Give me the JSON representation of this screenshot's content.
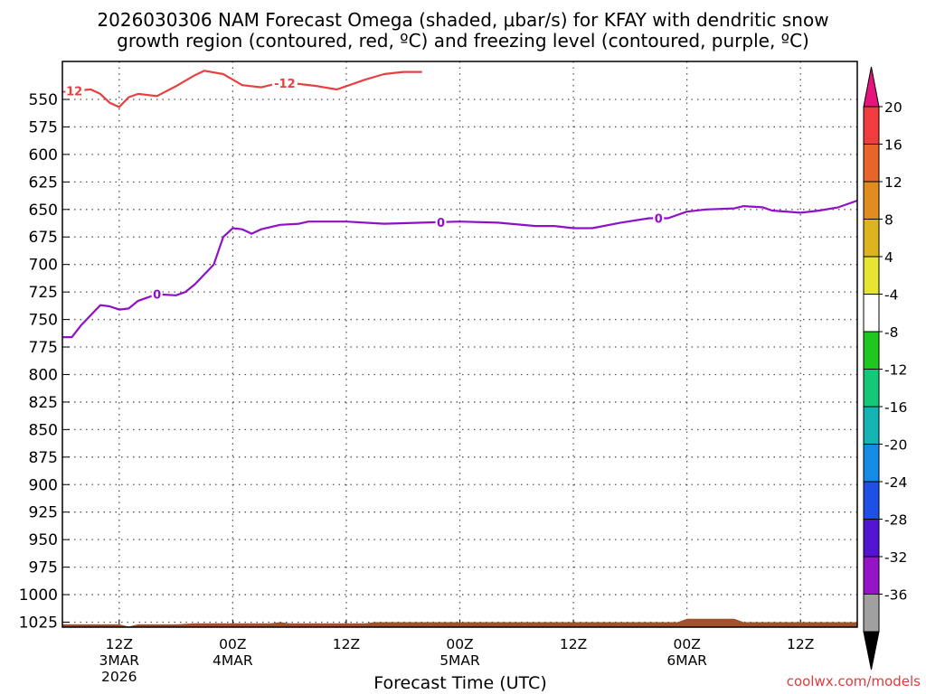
{
  "chart_data": {
    "type": "line",
    "title_line1": "2026030306 NAM Forecast Omega (shaded, μbar/s) for KFAY with dendritic snow",
    "title_line2": "growth region (contoured, red, ºC) and freezing level (contoured, purple, ºC)",
    "xlabel": "Forecast Time (UTC)",
    "credit": "coolwx.com/models",
    "x_range_hours": [
      0,
      84
    ],
    "y_range_hpa": [
      530,
      1040
    ],
    "y_ticks": [
      "550",
      "575",
      "600",
      "625",
      "650",
      "675",
      "700",
      "725",
      "750",
      "775",
      "800",
      "825",
      "850",
      "875",
      "900",
      "925",
      "950",
      "975",
      "1000",
      "1025"
    ],
    "x_ticks": [
      {
        "hour": 6,
        "line1": "12Z",
        "line2": "3MAR",
        "line3": "2026"
      },
      {
        "hour": 18,
        "line1": "00Z",
        "line2": "4MAR",
        "line3": ""
      },
      {
        "hour": 30,
        "line1": "12Z",
        "line2": "",
        "line3": ""
      },
      {
        "hour": 42,
        "line1": "00Z",
        "line2": "5MAR",
        "line3": ""
      },
      {
        "hour": 54,
        "line1": "12Z",
        "line2": "",
        "line3": ""
      },
      {
        "hour": 66,
        "line1": "00Z",
        "line2": "6MAR",
        "line3": ""
      },
      {
        "hour": 78,
        "line1": "12Z",
        "line2": "",
        "line3": ""
      }
    ],
    "series": [
      {
        "name": "-12 °C isotherm (dendritic growth region)",
        "label": "-12",
        "color": "#e84040",
        "label_hours": [
          1.0,
          23.5
        ],
        "points": [
          [
            0,
            543
          ],
          [
            3,
            541
          ],
          [
            4,
            545
          ],
          [
            5,
            553
          ],
          [
            6,
            557
          ],
          [
            7,
            548
          ],
          [
            8,
            545
          ],
          [
            10,
            547
          ],
          [
            12,
            538
          ],
          [
            14,
            528
          ],
          [
            15,
            524
          ],
          [
            17,
            527
          ],
          [
            19,
            537
          ],
          [
            21,
            539
          ],
          [
            23,
            535
          ],
          [
            25,
            536
          ],
          [
            27,
            538
          ],
          [
            29,
            541
          ],
          [
            30,
            538
          ],
          [
            32,
            532
          ],
          [
            34,
            527
          ],
          [
            36,
            525
          ],
          [
            38,
            525
          ]
        ]
      },
      {
        "name": "0 °C isotherm (freezing level)",
        "label": "0",
        "color": "#9010c8",
        "label_hours": [
          10,
          40,
          63
        ],
        "points": [
          [
            0,
            766
          ],
          [
            1,
            766
          ],
          [
            2,
            755
          ],
          [
            3,
            746
          ],
          [
            4,
            737
          ],
          [
            5,
            738
          ],
          [
            6,
            741
          ],
          [
            7,
            740
          ],
          [
            8,
            733
          ],
          [
            10,
            727
          ],
          [
            12,
            728
          ],
          [
            13,
            725
          ],
          [
            14,
            718
          ],
          [
            16,
            700
          ],
          [
            17,
            675
          ],
          [
            18,
            667
          ],
          [
            19,
            668
          ],
          [
            20,
            672
          ],
          [
            21,
            668
          ],
          [
            23,
            664
          ],
          [
            25,
            663
          ],
          [
            26,
            661
          ],
          [
            30,
            661
          ],
          [
            34,
            663
          ],
          [
            38,
            662
          ],
          [
            42,
            661
          ],
          [
            46,
            662
          ],
          [
            50,
            665
          ],
          [
            52,
            665
          ],
          [
            54,
            667
          ],
          [
            56,
            667
          ],
          [
            59,
            662
          ],
          [
            62,
            658
          ],
          [
            64,
            658
          ],
          [
            66,
            652
          ],
          [
            68,
            650
          ],
          [
            71,
            649
          ],
          [
            72,
            647
          ],
          [
            74,
            648
          ],
          [
            75,
            651
          ],
          [
            78,
            653
          ],
          [
            80,
            651
          ],
          [
            82,
            648
          ],
          [
            84,
            642
          ]
        ]
      }
    ],
    "terrain_color": "#a0522d",
    "colorbar": {
      "units": "μbar/s",
      "labels": [
        "20",
        "16",
        "12",
        "8",
        "4",
        "-4",
        "-8",
        "-12",
        "-16",
        "-20",
        "-24",
        "-28",
        "-32",
        "-36"
      ],
      "colors": [
        "#f03c3c",
        "#e86428",
        "#e08c1e",
        "#dcb41e",
        "#e6e632",
        "#ffffff",
        "#1ec81e",
        "#14c878",
        "#14b4b4",
        "#148ce6",
        "#1e50e6",
        "#5014d2",
        "#9614c8",
        "#a0a0a0"
      ],
      "top_arrow_color": "#e6147d",
      "bottom_arrow_color": "#000000"
    }
  }
}
